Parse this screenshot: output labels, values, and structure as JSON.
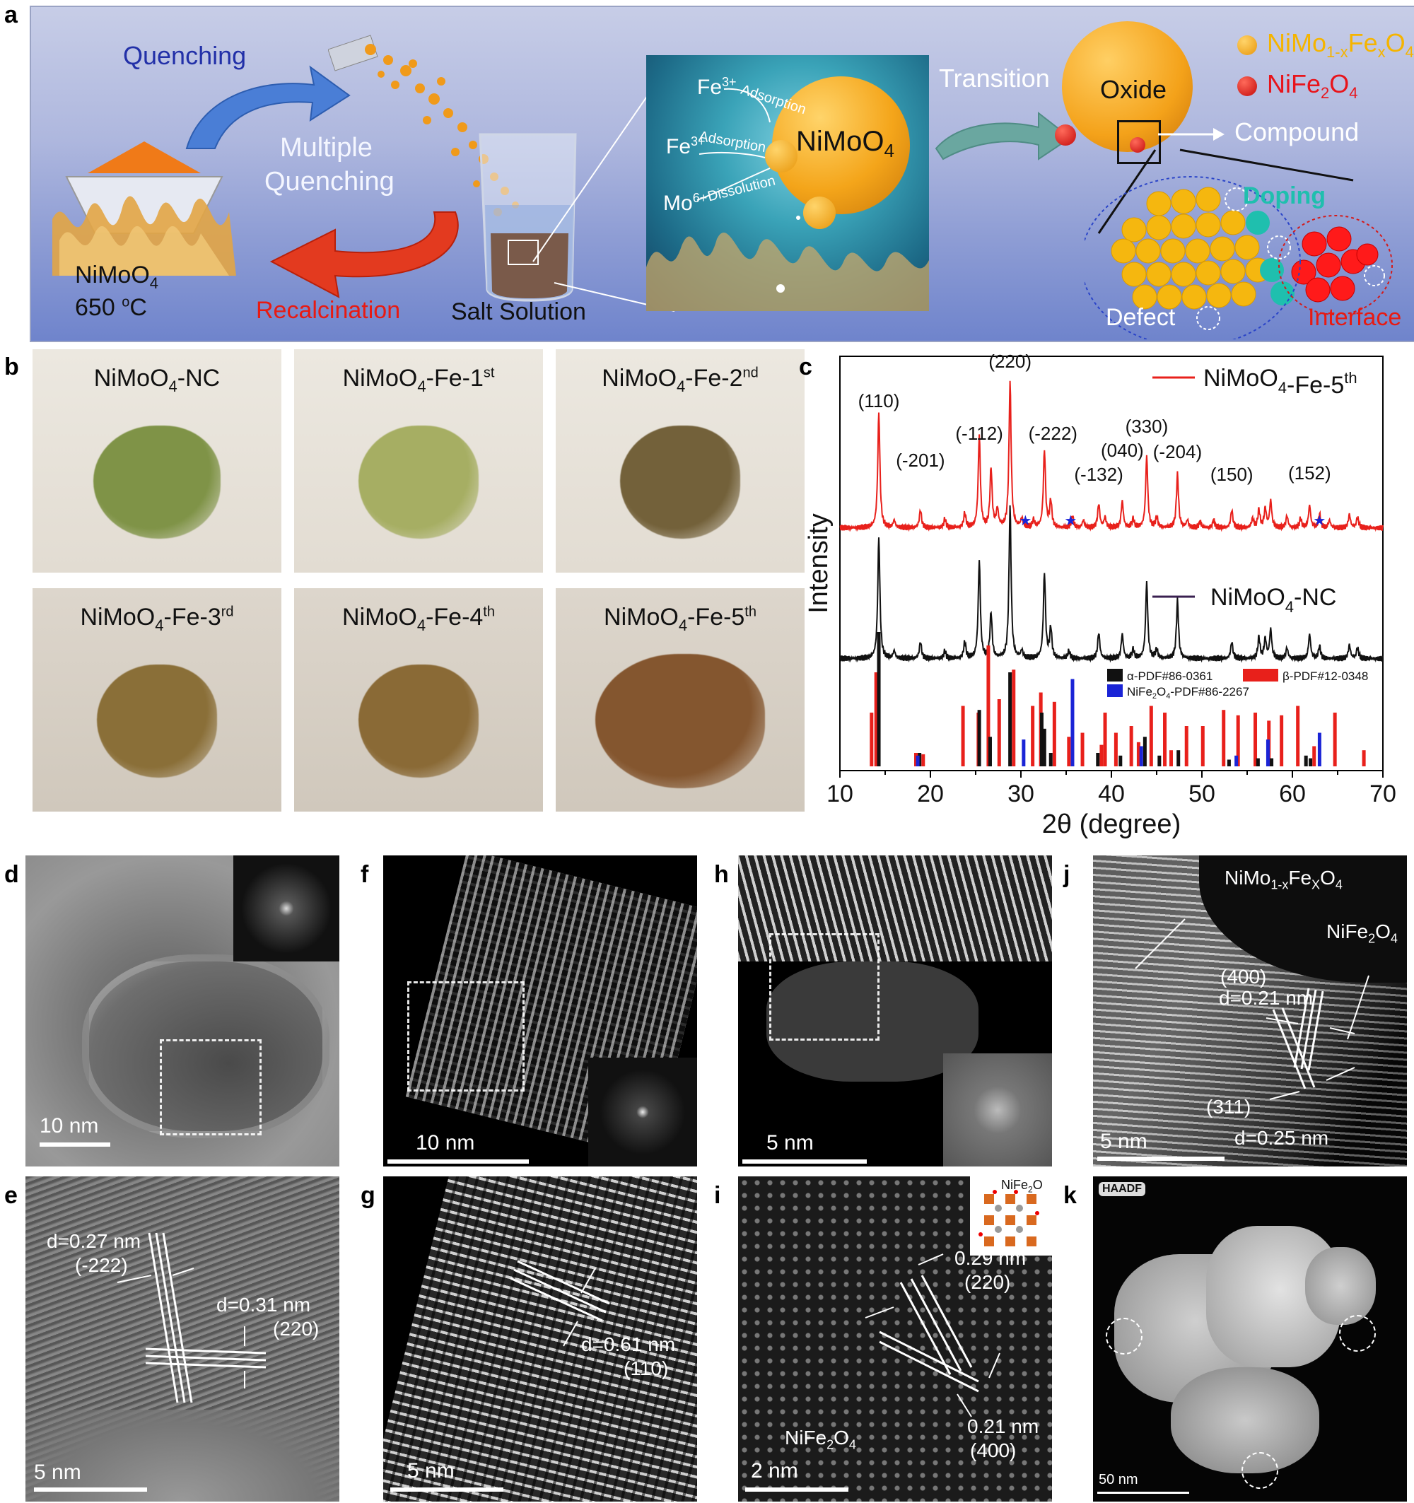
{
  "panels": {
    "a": {
      "label": "a",
      "quenching": "Quenching",
      "multiple_quenching_1": "Multiple",
      "multiple_quenching_2": "Quenching",
      "precursor_name": "NiMoO",
      "precursor_sub": "4",
      "temperature": "650 ",
      "temperature_sup": "o",
      "temperature_unit": "C",
      "recalcination": "Recalcination",
      "salt_solution": "Salt Solution",
      "inset": {
        "fe_adsorption_1_ion": "Fe",
        "fe_adsorption_1_sup": "3+",
        "fe_adsorption_1_label": "Adsorption",
        "fe_adsorption_2_ion": "Fe",
        "fe_adsorption_2_sup": "3+",
        "fe_adsorption_2_label": "Adsorption",
        "mo_dissolution_ion": "Mo",
        "mo_dissolution_sup": "6+",
        "mo_dissolution_label": "Dissolution",
        "sphere_label": "NiMoO",
        "sphere_sub": "4"
      },
      "transition": "Transition",
      "oxide": "Oxide",
      "compound": "Compound",
      "doping": "Doping",
      "defect": "Defect",
      "interface": "Interface",
      "legend": {
        "item1_pre": "NiMo",
        "item1_sub1": "1-x",
        "item1_mid": "Fe",
        "item1_sub2": "x",
        "item1_post": "O",
        "item1_sub3": "4",
        "item1_color": "#f5b400",
        "item2_pre": "NiFe",
        "item2_sub1": "2",
        "item2_post": "O",
        "item2_sub2": "4",
        "item2_color": "#e8141b"
      }
    },
    "b": {
      "label": "b",
      "samples": [
        {
          "pre": "NiMoO",
          "sub": "4",
          "post": "-NC",
          "sup": "",
          "color": "#7f9347"
        },
        {
          "pre": "NiMoO",
          "sub": "4",
          "post": "-Fe-1",
          "sup": "st",
          "color": "#a6ae63"
        },
        {
          "pre": "NiMoO",
          "sub": "4",
          "post": "-Fe-2",
          "sup": "nd",
          "color": "#73613a"
        },
        {
          "pre": "NiMoO",
          "sub": "4",
          "post": "-Fe-3",
          "sup": "rd",
          "color": "#8a6f38"
        },
        {
          "pre": "NiMoO",
          "sub": "4",
          "post": "-Fe-4",
          "sup": "th",
          "color": "#8a6a36"
        },
        {
          "pre": "NiMoO",
          "sub": "4",
          "post": "-Fe-5",
          "sup": "th",
          "color": "#84562f"
        }
      ]
    },
    "c": {
      "label": "c",
      "legend_fe5_pre": "NiMoO",
      "legend_fe5_sub": "4",
      "legend_fe5_post": "-Fe-5",
      "legend_fe5_sup": "th",
      "legend_nc_pre": "NiMoO",
      "legend_nc_sub": "4",
      "legend_nc_post": "-NC",
      "ref_alpha": "α-PDF#86-0361",
      "ref_beta": "β-PDF#12-0348",
      "ref_nife_pre": "NiFe",
      "ref_nife_sub1": "2",
      "ref_nife_mid": "O",
      "ref_nife_sub2": "4",
      "ref_nife_post": "-PDF#86-2267"
    },
    "d": {
      "label": "d",
      "scale": "10 nm"
    },
    "e": {
      "label": "e",
      "scale": "5 nm",
      "d1": "d=0.27 nm",
      "h1": "(-222)",
      "d2": "d=0.31 nm",
      "h2": "(220)"
    },
    "f": {
      "label": "f",
      "scale": "10 nm"
    },
    "g": {
      "label": "g",
      "scale": "5 nm",
      "d1": "d=0.61 nm",
      "h1": "(110)"
    },
    "h": {
      "label": "h",
      "scale": "5 nm"
    },
    "i": {
      "label": "i",
      "scale": "2 nm",
      "d1": "0.29 nm",
      "h1": "(220)",
      "d2": "0.21 nm",
      "h2": "(400)",
      "phase_pre": "NiFe",
      "phase_sub1": "2",
      "phase_post": "O",
      "phase_sub2": "4",
      "inset_pre": "NiFe",
      "inset_sub": "2",
      "inset_post": "O"
    },
    "j": {
      "label": "j",
      "scale": "5 nm",
      "phase1_pre": "NiMo",
      "phase1_sub1": "1-x",
      "phase1_mid": "Fe",
      "phase1_sub2": "X",
      "phase1_post": "O",
      "phase1_sub3": "4",
      "phase2_pre": "NiFe",
      "phase2_sub1": "2",
      "phase2_post": "O",
      "phase2_sub2": "4",
      "h1": "(400)",
      "d1": "d=0.21 nm",
      "h2": "(311)",
      "d2": "d=0.25 nm"
    },
    "k": {
      "label": "k",
      "badge": "HAADF",
      "scale": "50 nm"
    }
  },
  "chart_data": {
    "type": "line",
    "xlabel": "2θ (degree)",
    "ylabel": "Intensity",
    "xlim": [
      10,
      70
    ],
    "xticks": [
      10,
      20,
      30,
      40,
      50,
      60,
      70
    ],
    "series": [
      {
        "name": "NiMoO4-Fe-5th",
        "color": "#e8201b",
        "peaks": [
          [
            14.3,
            0.78
          ],
          [
            16.0,
            0.05
          ],
          [
            18.9,
            0.12
          ],
          [
            21.6,
            0.06
          ],
          [
            23.8,
            0.1
          ],
          [
            25.4,
            0.62
          ],
          [
            26.7,
            0.4
          ],
          [
            27.4,
            0.12
          ],
          [
            28.8,
            0.98
          ],
          [
            30.1,
            0.06
          ],
          [
            31.4,
            0.05
          ],
          [
            32.6,
            0.52
          ],
          [
            33.3,
            0.18
          ],
          [
            35.7,
            0.08
          ],
          [
            36.9,
            0.05
          ],
          [
            38.6,
            0.16
          ],
          [
            39.3,
            0.07
          ],
          [
            41.2,
            0.18
          ],
          [
            42.4,
            0.06
          ],
          [
            43.9,
            0.48
          ],
          [
            45.0,
            0.07
          ],
          [
            47.3,
            0.36
          ],
          [
            48.4,
            0.05
          ],
          [
            49.8,
            0.04
          ],
          [
            51.3,
            0.05
          ],
          [
            53.3,
            0.12
          ],
          [
            55.6,
            0.06
          ],
          [
            56.3,
            0.12
          ],
          [
            57.0,
            0.13
          ],
          [
            57.6,
            0.18
          ],
          [
            59.4,
            0.08
          ],
          [
            60.9,
            0.06
          ],
          [
            61.9,
            0.15
          ],
          [
            63.0,
            0.09
          ],
          [
            64.1,
            0.05
          ],
          [
            66.3,
            0.09
          ],
          [
            67.2,
            0.07
          ]
        ]
      },
      {
        "name": "NiMoO4-NC",
        "color": "#111111",
        "peaks": [
          [
            14.3,
            0.8
          ],
          [
            16.0,
            0.05
          ],
          [
            18.9,
            0.11
          ],
          [
            21.6,
            0.05
          ],
          [
            23.8,
            0.11
          ],
          [
            25.4,
            0.64
          ],
          [
            26.7,
            0.3
          ],
          [
            28.8,
            1.0
          ],
          [
            30.1,
            0.05
          ],
          [
            32.6,
            0.56
          ],
          [
            33.3,
            0.2
          ],
          [
            35.3,
            0.05
          ],
          [
            38.6,
            0.17
          ],
          [
            41.2,
            0.16
          ],
          [
            42.4,
            0.06
          ],
          [
            43.9,
            0.5
          ],
          [
            45.0,
            0.06
          ],
          [
            47.3,
            0.38
          ],
          [
            53.3,
            0.11
          ],
          [
            56.3,
            0.14
          ],
          [
            57.0,
            0.13
          ],
          [
            57.6,
            0.19
          ],
          [
            59.4,
            0.07
          ],
          [
            61.9,
            0.16
          ],
          [
            63.0,
            0.08
          ],
          [
            66.3,
            0.09
          ],
          [
            67.2,
            0.07
          ]
        ]
      }
    ],
    "star_markers_x": [
      30.5,
      35.5,
      63.0
    ],
    "peak_annotations": [
      {
        "x": 14.3,
        "label": "(110)"
      },
      {
        "x": 18.9,
        "label": "(-201)"
      },
      {
        "x": 25.4,
        "label": "(-112)"
      },
      {
        "x": 28.8,
        "label": "(220)"
      },
      {
        "x": 32.6,
        "label": "(-222)"
      },
      {
        "x": 38.6,
        "label": "(-132)"
      },
      {
        "x": 41.2,
        "label": "(040)"
      },
      {
        "x": 43.9,
        "label": "(330)"
      },
      {
        "x": 47.3,
        "label": "(-204)"
      },
      {
        "x": 53.3,
        "label": "(150)"
      },
      {
        "x": 61.9,
        "label": "(152)"
      }
    ],
    "reference_sticks": {
      "alpha": {
        "color": "#111111",
        "lines": [
          [
            14.3,
            1.0
          ],
          [
            18.8,
            0.1
          ],
          [
            25.4,
            0.42
          ],
          [
            26.6,
            0.22
          ],
          [
            28.8,
            0.7
          ],
          [
            32.3,
            0.4
          ],
          [
            32.6,
            0.28
          ],
          [
            33.3,
            0.1
          ],
          [
            38.5,
            0.1
          ],
          [
            41.0,
            0.08
          ],
          [
            43.7,
            0.22
          ],
          [
            45.3,
            0.08
          ],
          [
            47.4,
            0.12
          ],
          [
            53.0,
            0.05
          ],
          [
            56.2,
            0.06
          ],
          [
            57.7,
            0.06
          ],
          [
            61.5,
            0.08
          ],
          [
            62.0,
            0.06
          ]
        ]
      },
      "beta": {
        "color": "#e8201b",
        "lines": [
          [
            13.5,
            0.4
          ],
          [
            14.0,
            0.7
          ],
          [
            18.4,
            0.1
          ],
          [
            19.2,
            0.09
          ],
          [
            23.6,
            0.45
          ],
          [
            25.3,
            0.4
          ],
          [
            26.4,
            0.9
          ],
          [
            27.6,
            0.5
          ],
          [
            29.2,
            0.72
          ],
          [
            31.3,
            0.45
          ],
          [
            32.2,
            0.55
          ],
          [
            33.7,
            0.48
          ],
          [
            35.3,
            0.22
          ],
          [
            36.8,
            0.25
          ],
          [
            38.9,
            0.16
          ],
          [
            39.3,
            0.4
          ],
          [
            40.5,
            0.25
          ],
          [
            42.2,
            0.3
          ],
          [
            43.0,
            0.18
          ],
          [
            44.4,
            0.45
          ],
          [
            45.9,
            0.4
          ],
          [
            46.6,
            0.12
          ],
          [
            48.3,
            0.3
          ],
          [
            50.1,
            0.3
          ],
          [
            52.4,
            0.42
          ],
          [
            54.0,
            0.38
          ],
          [
            55.9,
            0.4
          ],
          [
            57.4,
            0.34
          ],
          [
            58.8,
            0.38
          ],
          [
            60.6,
            0.45
          ],
          [
            62.4,
            0.15
          ],
          [
            64.7,
            0.4
          ],
          [
            67.9,
            0.12
          ]
        ]
      },
      "nife2o4": {
        "color": "#1a24d6",
        "lines": [
          [
            18.6,
            0.08
          ],
          [
            30.3,
            0.2
          ],
          [
            35.7,
            0.65
          ],
          [
            43.3,
            0.15
          ],
          [
            53.8,
            0.08
          ],
          [
            57.3,
            0.2
          ],
          [
            63.0,
            0.25
          ]
        ]
      }
    }
  }
}
